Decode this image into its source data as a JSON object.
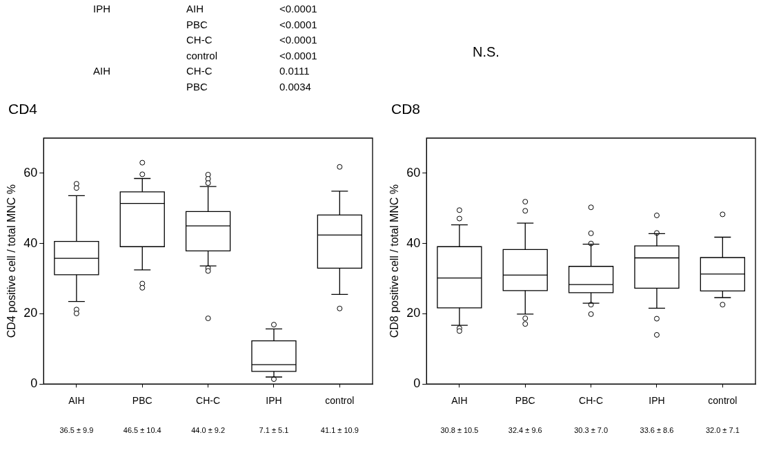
{
  "chart_data": [
    {
      "type": "box",
      "title": "CD4",
      "ylabel": "CD4 positive cell / total MNC %",
      "categories": [
        "AIH",
        "PBC",
        "CH-C",
        "IPH",
        "control"
      ],
      "boxes": [
        {
          "low": 23.5,
          "q1": 31.1,
          "median": 35.8,
          "q3": 40.6,
          "high": 53.6,
          "outliers": [
            57.0,
            55.8,
            21.2,
            20.1
          ]
        },
        {
          "low": 32.5,
          "q1": 39.1,
          "median": 51.4,
          "q3": 54.7,
          "high": 58.5,
          "outliers": [
            63.0,
            59.7,
            28.6,
            27.4
          ]
        },
        {
          "low": 33.6,
          "q1": 37.9,
          "median": 45.0,
          "q3": 49.1,
          "high": 56.2,
          "outliers": [
            59.6,
            58.4,
            57.2,
            33.0,
            32.2,
            18.7
          ]
        },
        {
          "low": 2.0,
          "q1": 3.6,
          "median": 5.5,
          "q3": 12.3,
          "high": 15.7,
          "outliers": [
            16.9,
            1.4
          ]
        },
        {
          "low": 25.5,
          "q1": 33.0,
          "median": 42.4,
          "q3": 48.1,
          "high": 54.9,
          "outliers": [
            61.8,
            21.5
          ]
        }
      ],
      "ylim": [
        0,
        70
      ],
      "yticks": [
        0,
        20,
        40,
        60
      ],
      "grid": false,
      "legend": false,
      "marker": "circle",
      "annotations": [
        "IPH\tAIH\t<0.0001",
        "\tPBC\t<0.0001",
        "\tCH-C\t<0.0001",
        "\tcontrol\t<0.0001",
        "AIH\tCH-C\t0.0111",
        "\tPBC\t0.0034",
        "36.5 ± 9.9",
        "46.5 ± 10.4",
        "44.0 ± 9.2",
        "7.1 ± 5.1",
        "41.1 ± 10.9"
      ]
    },
    {
      "type": "box",
      "title": "CD8",
      "ylabel": "CD8 positive cell / total MNC %",
      "categories": [
        "AIH",
        "PBC",
        "CH-C",
        "IPH",
        "control"
      ],
      "boxes": [
        {
          "low": 16.7,
          "q1": 21.7,
          "median": 30.2,
          "q3": 39.1,
          "high": 45.3,
          "outliers": [
            49.5,
            47.1,
            15.9,
            15.1
          ]
        },
        {
          "low": 19.9,
          "q1": 26.6,
          "median": 31.0,
          "q3": 38.3,
          "high": 45.8,
          "outliers": [
            51.9,
            49.3,
            18.7,
            17.1
          ]
        },
        {
          "low": 23.0,
          "q1": 26.0,
          "median": 28.3,
          "q3": 33.5,
          "high": 39.8,
          "outliers": [
            50.3,
            42.9,
            40.0,
            22.6,
            19.9
          ]
        },
        {
          "low": 21.6,
          "q1": 27.3,
          "median": 35.9,
          "q3": 39.3,
          "high": 42.8,
          "outliers": [
            48.0,
            43.0,
            18.6,
            14.0
          ]
        },
        {
          "low": 24.6,
          "q1": 26.5,
          "median": 31.3,
          "q3": 36.0,
          "high": 41.8,
          "outliers": [
            48.3,
            22.6
          ]
        }
      ],
      "ylim": [
        0,
        70
      ],
      "yticks": [
        0,
        20,
        40,
        60
      ],
      "grid": false,
      "legend": false,
      "marker": "circle",
      "annotations": [
        "N.S.",
        "30.8 ± 10.5",
        "32.4 ± 9.6",
        "30.3 ± 7.0",
        "33.6 ± 8.6",
        "32.0 ± 7.1"
      ]
    }
  ]
}
